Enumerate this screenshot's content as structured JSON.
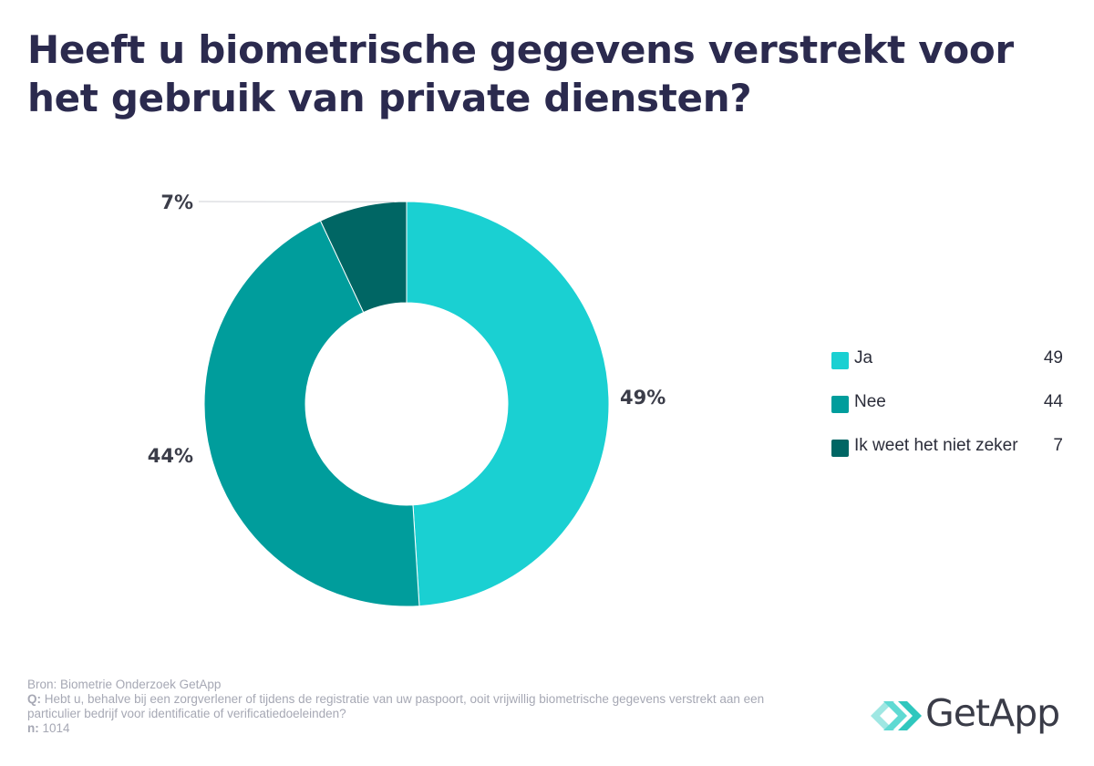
{
  "title": "Heeft u biometrische gegevens verstrekt voor het gebruik van private diensten?",
  "chart_data": {
    "type": "pie",
    "variant": "donut",
    "labels": [
      "Ja",
      "Nee",
      "Ik weet het niet zeker"
    ],
    "values": [
      49,
      44,
      7
    ],
    "value_labels": [
      "49%",
      "44%",
      "7%"
    ],
    "colors": [
      "#1ad0d2",
      "#009d9c",
      "#006664"
    ],
    "legend_position": "right"
  },
  "legend": {
    "items": [
      {
        "label": "Ja",
        "value": "49"
      },
      {
        "label": "Nee",
        "value": "44"
      },
      {
        "label": "Ik weet het niet zeker",
        "value": "7"
      }
    ]
  },
  "footer": {
    "source": "Bron: Biometrie Onderzoek GetApp",
    "question_prefix": "Q:",
    "question": "Hebt u, behalve bij een zorgverlener of tijdens de registratie van uw paspoort, ooit vrijwillig biometrische gegevens verstrekt aan een particulier bedrijf voor identificatie of verificatiedoeleinden?",
    "n_prefix": "n:",
    "n_value": "1014"
  },
  "logo": {
    "text": "GetApp",
    "icon": "getapp-chevrons-icon",
    "accent": "#3fd0c9"
  }
}
